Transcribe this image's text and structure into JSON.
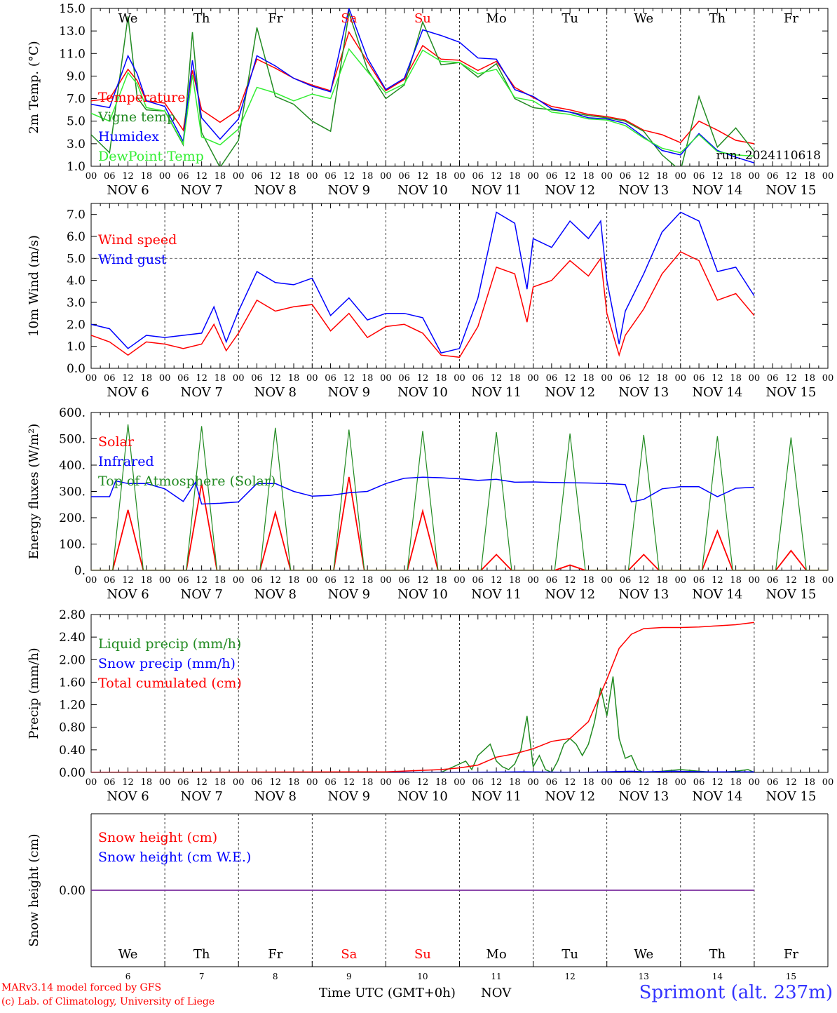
{
  "run_label": "run: 2024110618",
  "x_axis": {
    "hour_ticks": [
      "00",
      "06",
      "12",
      "18"
    ],
    "final_tick": "00",
    "dates": [
      "NOV  6",
      "NOV  7",
      "NOV  8",
      "NOV  9",
      "NOV 10",
      "NOV 11",
      "NOV 12",
      "NOV 13",
      "NOV 14",
      "NOV 15"
    ],
    "weekdays": [
      "We",
      "Th",
      "Fr",
      "Sa",
      "Su",
      "Mo",
      "Tu",
      "We",
      "Th",
      "Fr"
    ],
    "weekend_flags": [
      false,
      false,
      false,
      true,
      true,
      false,
      false,
      false,
      false,
      false
    ],
    "day_numbers": [
      "6",
      "7",
      "8",
      "9",
      "10",
      "11",
      "12",
      "13",
      "14",
      "15"
    ],
    "start_day": 6,
    "days": 10
  },
  "colors": {
    "red": "#ff0000",
    "darkgreen": "#228b22",
    "blue": "#0000ff",
    "lightgreen": "#33ee33",
    "purple": "#7b2f9e",
    "axis": "#000000"
  },
  "footer": {
    "model_line": "MARv3.14 model forced by GFS",
    "credit_line": "(c) Lab. of Climatology, University of Liege",
    "axis_title": "Time UTC (GMT+0h)",
    "month": "NOV",
    "station": "Sprimont (alt. 237m)"
  },
  "chart_data": [
    {
      "id": "temperature",
      "type": "line",
      "ylabel": "2m Temp. (°C)",
      "ylim": [
        1.0,
        15.0
      ],
      "yticks": [
        "1.0",
        "3.0",
        "5.0",
        "7.0",
        "9.0",
        "11.0",
        "13.0",
        "15.0"
      ],
      "ytick_values": [
        1,
        3,
        5,
        7,
        9,
        11,
        13,
        15
      ],
      "x_unit": "hours since Nov 6 00 UTC",
      "show_weekdays": true,
      "series": [
        {
          "name": "Temperature",
          "color": "#ff0000",
          "x": [
            0,
            6,
            12,
            15,
            18,
            24,
            30,
            33,
            36,
            42,
            48,
            54,
            60,
            66,
            72,
            78,
            84,
            90,
            96,
            102,
            108,
            114,
            120,
            126,
            132,
            138,
            144,
            150,
            156,
            162,
            168,
            174,
            180,
            186,
            192,
            198,
            204,
            210,
            216
          ],
          "y": [
            6.8,
            7.0,
            9.6,
            8.6,
            6.8,
            6.6,
            4.2,
            9.5,
            6.0,
            4.9,
            6.0,
            10.5,
            9.7,
            8.8,
            8.2,
            7.7,
            12.9,
            10.3,
            7.7,
            8.7,
            11.7,
            10.5,
            10.4,
            9.5,
            10.3,
            8.0,
            7.1,
            6.3,
            6.0,
            5.6,
            5.4,
            5.1,
            4.2,
            3.8,
            3.1,
            5.0,
            4.2,
            3.3,
            3.0
          ]
        },
        {
          "name": "Vigne temp",
          "color": "#228b22",
          "x": [
            0,
            6,
            12,
            15,
            18,
            24,
            30,
            33,
            36,
            42,
            48,
            54,
            60,
            66,
            72,
            78,
            84,
            90,
            96,
            102,
            108,
            114,
            120,
            126,
            132,
            138,
            144,
            150,
            156,
            162,
            168,
            174,
            180,
            186,
            192,
            198,
            204,
            210,
            216
          ],
          "y": [
            3.8,
            2.2,
            14.3,
            7.1,
            6.0,
            5.9,
            2.9,
            12.9,
            4.0,
            0.9,
            3.3,
            13.3,
            7.2,
            6.5,
            5.0,
            4.1,
            14.6,
            9.6,
            7.0,
            8.2,
            13.8,
            10.0,
            10.2,
            8.9,
            10.1,
            7.0,
            6.2,
            6.0,
            5.8,
            5.5,
            5.3,
            5.0,
            4.1,
            2.0,
            0.6,
            7.2,
            2.7,
            4.4,
            2.3
          ]
        },
        {
          "name": "Humidex",
          "color": "#0000ff",
          "x": [
            0,
            6,
            12,
            15,
            18,
            24,
            30,
            33,
            36,
            42,
            48,
            54,
            60,
            66,
            72,
            78,
            84,
            90,
            96,
            102,
            108,
            114,
            120,
            126,
            132,
            138,
            144,
            150,
            156,
            162,
            168,
            174,
            180,
            186,
            192,
            198,
            204,
            210,
            216
          ],
          "y": [
            6.5,
            6.2,
            10.8,
            9.2,
            6.8,
            6.3,
            3.2,
            10.4,
            5.3,
            3.4,
            5.2,
            10.8,
            9.9,
            8.8,
            8.1,
            7.6,
            15.0,
            10.6,
            7.8,
            8.8,
            13.1,
            12.6,
            12.0,
            10.6,
            10.5,
            7.8,
            7.2,
            6.1,
            5.8,
            5.3,
            5.2,
            4.8,
            3.6,
            2.4,
            2.0,
            3.9,
            2.4,
            1.8,
            1.3
          ]
        },
        {
          "name": "DewPoint Temp",
          "color": "#33ee33",
          "x": [
            0,
            6,
            12,
            15,
            18,
            24,
            30,
            33,
            36,
            42,
            48,
            54,
            60,
            66,
            72,
            78,
            84,
            90,
            96,
            102,
            108,
            114,
            120,
            126,
            132,
            138,
            144,
            150,
            156,
            162,
            168,
            174,
            180,
            186,
            192,
            198,
            204,
            210,
            216
          ],
          "y": [
            5.7,
            5.0,
            9.3,
            8.3,
            6.2,
            5.9,
            3.0,
            9.1,
            3.6,
            2.9,
            4.3,
            8.0,
            7.5,
            6.8,
            7.4,
            7.0,
            11.4,
            9.4,
            7.5,
            8.3,
            11.3,
            10.3,
            10.2,
            9.2,
            9.6,
            7.1,
            6.8,
            5.8,
            5.6,
            5.2,
            5.1,
            4.6,
            3.5,
            2.6,
            2.2,
            3.8,
            2.3,
            2.0,
            1.9
          ]
        }
      ]
    },
    {
      "id": "wind",
      "type": "line",
      "ylabel": "10m Wind (m/s)",
      "ylim": [
        0.0,
        7.5
      ],
      "yticks": [
        "0.0",
        "1.0",
        "2.0",
        "3.0",
        "4.0",
        "5.0",
        "6.0",
        "7.0"
      ],
      "ytick_values": [
        0,
        1,
        2,
        3,
        4,
        5,
        6,
        7
      ],
      "x_unit": "hours since Nov 6 00 UTC",
      "reference_line": 5.0,
      "series": [
        {
          "name": "Wind speed",
          "color": "#ff0000",
          "x": [
            0,
            6,
            12,
            18,
            24,
            30,
            36,
            40,
            44,
            48,
            54,
            60,
            66,
            72,
            78,
            84,
            90,
            96,
            102,
            108,
            114,
            120,
            126,
            132,
            138,
            142,
            144,
            150,
            156,
            162,
            166,
            168,
            172,
            174,
            180,
            186,
            192,
            198,
            204,
            210,
            216
          ],
          "y": [
            1.5,
            1.2,
            0.6,
            1.2,
            1.1,
            0.9,
            1.1,
            2.0,
            0.8,
            1.6,
            3.1,
            2.6,
            2.8,
            2.9,
            1.7,
            2.5,
            1.4,
            1.9,
            2.0,
            1.6,
            0.6,
            0.5,
            1.9,
            4.6,
            4.3,
            2.1,
            3.7,
            4.0,
            4.9,
            4.2,
            5.0,
            2.5,
            0.6,
            1.5,
            2.7,
            4.3,
            5.3,
            4.9,
            3.1,
            3.4,
            2.4
          ]
        },
        {
          "name": "Wind gust",
          "color": "#0000ff",
          "x": [
            0,
            6,
            12,
            18,
            24,
            30,
            36,
            40,
            44,
            48,
            54,
            60,
            66,
            72,
            78,
            84,
            90,
            96,
            102,
            108,
            114,
            120,
            126,
            132,
            138,
            142,
            144,
            150,
            156,
            162,
            166,
            168,
            172,
            174,
            180,
            186,
            192,
            198,
            204,
            210,
            216
          ],
          "y": [
            2.0,
            1.8,
            0.9,
            1.5,
            1.4,
            1.5,
            1.6,
            2.8,
            1.2,
            2.6,
            4.4,
            3.9,
            3.8,
            4.1,
            2.4,
            3.2,
            2.2,
            2.5,
            2.5,
            2.3,
            0.7,
            0.9,
            3.2,
            7.1,
            6.6,
            3.6,
            5.9,
            5.5,
            6.7,
            5.9,
            6.7,
            4.0,
            1.1,
            2.6,
            4.3,
            6.2,
            7.1,
            6.7,
            4.4,
            4.6,
            3.3
          ]
        }
      ]
    },
    {
      "id": "energy",
      "type": "line",
      "ylabel": "Energy fluxes (W/m²)",
      "ylim": [
        0,
        600
      ],
      "yticks": [
        "0.",
        "100.",
        "200.",
        "300.",
        "400.",
        "500.",
        "600."
      ],
      "ytick_values": [
        0,
        100,
        200,
        300,
        400,
        500,
        600
      ],
      "x_unit": "hours since Nov 6 00 UTC",
      "daily_peak_series": [
        {
          "name": "Solar",
          "color": "#ff0000",
          "peaks": [
            230,
            330,
            220,
            355,
            225,
            60,
            20,
            60,
            150,
            75
          ]
        },
        {
          "name": "Top of Atmosphere (Solar)",
          "color": "#228b22",
          "peaks": [
            555,
            548,
            542,
            535,
            530,
            525,
            520,
            515,
            510,
            505
          ]
        }
      ],
      "daylight_hours": {
        "rise": 7,
        "noon": 12,
        "set": 17
      },
      "series": [
        {
          "name": "Infrared",
          "color": "#0000ff",
          "x": [
            0,
            6,
            8,
            12,
            18,
            24,
            30,
            34,
            36,
            42,
            48,
            54,
            60,
            66,
            72,
            78,
            84,
            90,
            96,
            102,
            108,
            114,
            120,
            126,
            132,
            138,
            144,
            150,
            156,
            162,
            168,
            174,
            176,
            180,
            186,
            192,
            198,
            204,
            210,
            216
          ],
          "y": [
            280,
            280,
            340,
            330,
            330,
            310,
            262,
            335,
            252,
            255,
            260,
            330,
            330,
            300,
            282,
            285,
            295,
            300,
            330,
            350,
            354,
            352,
            348,
            342,
            346,
            335,
            336,
            334,
            333,
            332,
            330,
            326,
            260,
            270,
            310,
            318,
            318,
            280,
            312,
            316
          ]
        }
      ]
    },
    {
      "id": "precip",
      "type": "line",
      "ylabel": "Precip (mm/h)",
      "ylim": [
        0.0,
        2.8
      ],
      "yticks": [
        "0.00",
        "0.40",
        "0.80",
        "1.20",
        "1.60",
        "2.00",
        "2.40",
        "2.80"
      ],
      "ytick_values": [
        0,
        0.4,
        0.8,
        1.2,
        1.6,
        2.0,
        2.4,
        2.8
      ],
      "x_unit": "hours since Nov 6 00 UTC",
      "series": [
        {
          "name": "Liquid precip (mm/h)",
          "color": "#228b22",
          "x": [
            0,
            114,
            118,
            122,
            124,
            126,
            130,
            132,
            134,
            136,
            138,
            140,
            142,
            144,
            146,
            148,
            150,
            152,
            154,
            156,
            158,
            160,
            162,
            164,
            166,
            168,
            170,
            172,
            174,
            176,
            178,
            180,
            186,
            192,
            198,
            204,
            210,
            214,
            216
          ],
          "y": [
            0,
            0,
            0.1,
            0.2,
            0.05,
            0.3,
            0.5,
            0.2,
            0.1,
            0.05,
            0.15,
            0.4,
            1.0,
            0.1,
            0.3,
            0.05,
            0,
            0.2,
            0.5,
            0.6,
            0.5,
            0.3,
            0.5,
            0.9,
            1.5,
            1.0,
            1.7,
            0.6,
            0.25,
            0.3,
            0.05,
            0,
            0.02,
            0.05,
            0.02,
            0,
            0.02,
            0.05,
            0
          ]
        },
        {
          "name": "Snow precip (mm/h)",
          "color": "#0000ff",
          "x": [
            0,
            96,
            120,
            140,
            160,
            176,
            180,
            190,
            200,
            216
          ],
          "y": [
            0,
            0,
            0,
            0.01,
            0,
            0.02,
            0.01,
            0.02,
            0.01,
            0.01
          ]
        },
        {
          "name": "Total cumulated (cm)",
          "color": "#ff0000",
          "x": [
            0,
            96,
            114,
            120,
            126,
            132,
            138,
            144,
            150,
            156,
            162,
            168,
            172,
            176,
            180,
            186,
            192,
            198,
            204,
            210,
            216
          ],
          "y": [
            0,
            0.01,
            0.05,
            0.08,
            0.13,
            0.27,
            0.33,
            0.42,
            0.55,
            0.6,
            0.9,
            1.65,
            2.2,
            2.45,
            2.55,
            2.57,
            2.57,
            2.58,
            2.6,
            2.62,
            2.66
          ]
        }
      ]
    },
    {
      "id": "snow",
      "type": "line",
      "ylabel": "Snow height (cm)",
      "yticks": [
        "0.00"
      ],
      "ytick_values": [
        0
      ],
      "x_unit": "hours since Nov 6 00 UTC",
      "series": [
        {
          "name": "Snow height (cm)",
          "color": "#ff0000",
          "x": [
            0,
            216
          ],
          "y": [
            0,
            0
          ]
        },
        {
          "name": "Snow height (cm W.E.)",
          "color": "#0000ff",
          "x": [
            0,
            216
          ],
          "y": [
            0,
            0
          ]
        }
      ]
    }
  ]
}
